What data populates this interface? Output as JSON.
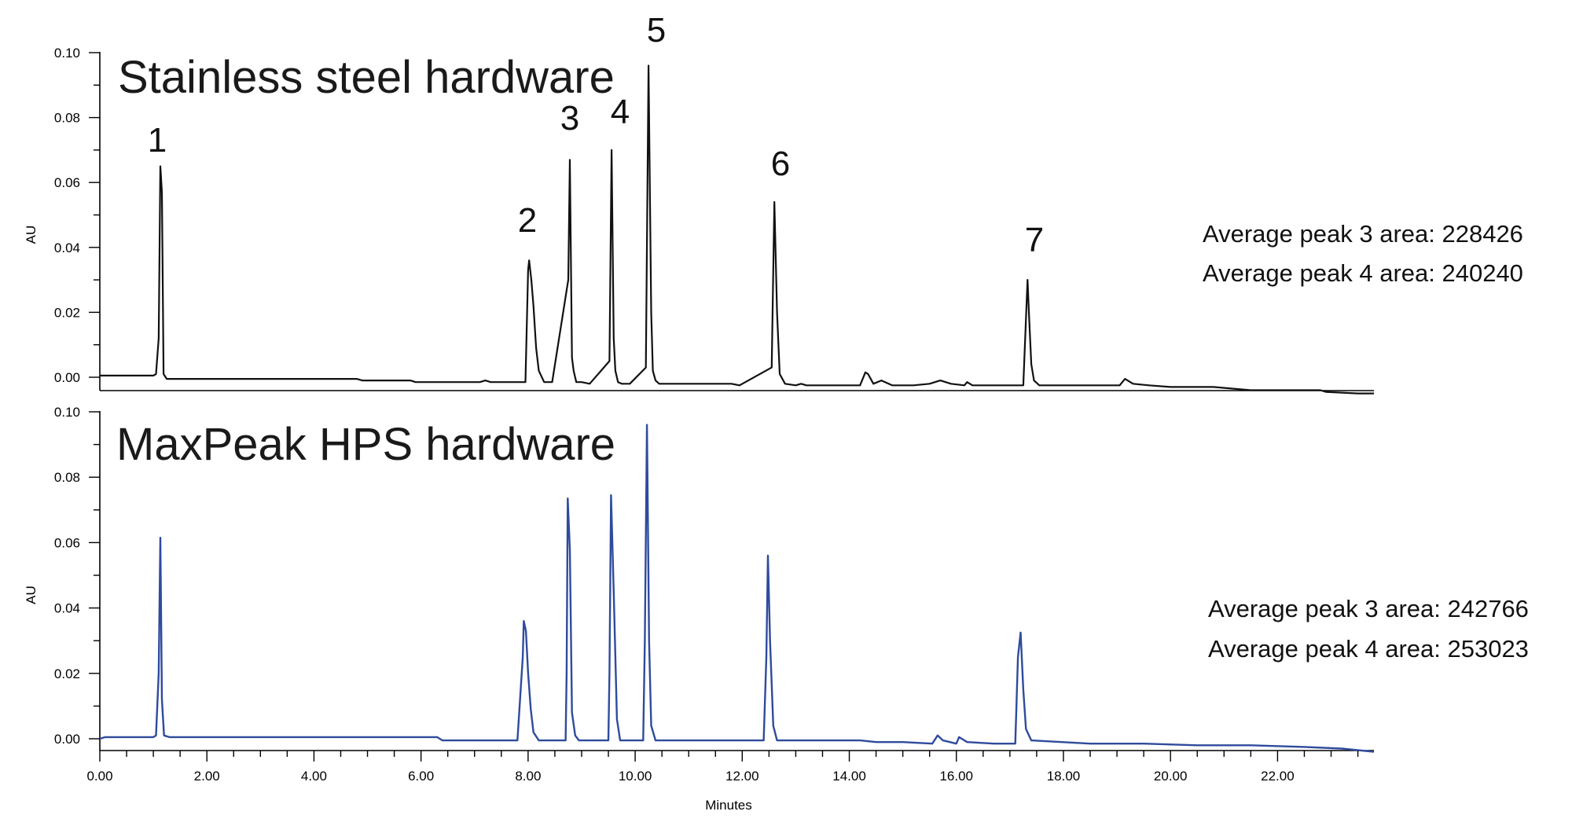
{
  "chart_data": [
    {
      "type": "line",
      "title": "Stainless steel hardware",
      "xlabel": "",
      "ylabel": "AU",
      "xlim": [
        0,
        23.8
      ],
      "ylim": [
        -0.005,
        0.1
      ],
      "yticks": [
        "0.00",
        "0.02",
        "0.04",
        "0.06",
        "0.08",
        "0.10"
      ],
      "xticks": [],
      "grid": false,
      "color": "#111111",
      "series": [
        {
          "x": [
            0,
            1.0,
            1.05,
            1.1,
            1.13,
            1.16,
            1.19,
            1.25,
            4.8,
            4.9,
            5.8,
            5.9,
            7.1,
            7.2,
            7.3,
            7.95,
            8.0,
            8.02,
            8.06,
            8.1,
            8.15,
            8.2,
            8.3,
            8.45,
            8.75,
            8.78,
            8.82,
            8.85,
            8.9,
            9.0,
            9.15,
            9.52,
            9.56,
            9.6,
            9.63,
            9.68,
            9.75,
            9.9,
            10.2,
            10.25,
            10.3,
            10.33,
            10.38,
            10.45,
            10.6,
            11.8,
            11.95,
            12.55,
            12.6,
            12.65,
            12.7,
            12.8,
            13.0,
            13.1,
            13.2,
            14.2,
            14.3,
            14.35,
            14.45,
            14.6,
            14.8,
            15.2,
            15.5,
            15.7,
            15.9,
            16.15,
            16.2,
            16.3,
            17.25,
            17.3,
            17.33,
            17.36,
            17.4,
            17.45,
            17.55,
            17.8,
            19.05,
            19.15,
            19.3,
            19.6,
            20.0,
            20.8,
            21.5,
            22.8,
            22.9,
            23.5,
            23.8
          ],
          "y": [
            0.0005,
            0.0005,
            0.001,
            0.012,
            0.065,
            0.057,
            0.001,
            -0.0005,
            -0.0005,
            -0.001,
            -0.001,
            -0.0015,
            -0.0015,
            -0.001,
            -0.0015,
            -0.0015,
            0.033,
            0.036,
            0.03,
            0.022,
            0.009,
            0.002,
            -0.0015,
            -0.0015,
            0.03,
            0.067,
            0.006,
            0.002,
            -0.0015,
            -0.0015,
            -0.002,
            0.005,
            0.07,
            0.012,
            0.002,
            -0.0015,
            -0.002,
            -0.002,
            0.003,
            0.096,
            0.02,
            0.002,
            -0.001,
            -0.002,
            -0.002,
            -0.002,
            -0.0025,
            0.003,
            0.054,
            0.02,
            0.001,
            -0.002,
            -0.0025,
            -0.002,
            -0.0025,
            -0.0025,
            0.0015,
            0.001,
            -0.002,
            -0.001,
            -0.0025,
            -0.0025,
            -0.002,
            -0.001,
            -0.002,
            -0.0025,
            -0.0015,
            -0.0025,
            -0.0025,
            0.018,
            0.03,
            0.018,
            0.004,
            -0.001,
            -0.0025,
            -0.0025,
            -0.0025,
            -0.0005,
            -0.002,
            -0.0025,
            -0.003,
            -0.003,
            -0.004,
            -0.004,
            -0.0045,
            -0.005,
            -0.005
          ]
        }
      ],
      "annotations": [
        "1",
        "2",
        "3",
        "4",
        "5",
        "6",
        "7"
      ],
      "notes": [
        "Average peak 3 area: 228426",
        "Average peak 4 area: 240240"
      ]
    },
    {
      "type": "line",
      "title": "MaxPeak HPS hardware",
      "xlabel": "Minutes",
      "ylabel": "AU",
      "xlim": [
        0,
        23.8
      ],
      "ylim": [
        -0.004,
        0.1
      ],
      "yticks": [
        "0.00",
        "0.02",
        "0.04",
        "0.06",
        "0.08",
        "0.10"
      ],
      "xticks": [
        "0.00",
        "2.00",
        "4.00",
        "6.00",
        "8.00",
        "10.00",
        "12.00",
        "14.00",
        "16.00",
        "18.00",
        "20.00",
        "22.00"
      ],
      "grid": false,
      "color": "#2f4b9c",
      "series": [
        {
          "x": [
            0,
            0.1,
            1.0,
            1.05,
            1.1,
            1.13,
            1.16,
            1.2,
            1.3,
            6.3,
            6.4,
            7.8,
            7.9,
            7.92,
            7.96,
            8.0,
            8.05,
            8.1,
            8.2,
            8.7,
            8.72,
            8.74,
            8.78,
            8.82,
            8.88,
            8.95,
            9.5,
            9.52,
            9.55,
            9.6,
            9.66,
            9.72,
            10.15,
            10.18,
            10.22,
            10.26,
            10.3,
            10.38,
            12.2,
            12.4,
            12.45,
            12.48,
            12.52,
            12.58,
            12.65,
            13.2,
            14.2,
            14.5,
            15.0,
            15.55,
            15.65,
            15.75,
            16.0,
            16.05,
            16.2,
            16.7,
            17.1,
            17.15,
            17.2,
            17.25,
            17.3,
            17.4,
            18.5,
            19.5,
            20.5,
            21.5,
            22.5,
            23.2,
            23.8
          ],
          "y": [
            0.0,
            0.0005,
            0.0005,
            0.001,
            0.02,
            0.0615,
            0.012,
            0.001,
            0.0005,
            0.0005,
            -0.0005,
            -0.0005,
            0.025,
            0.036,
            0.033,
            0.02,
            0.009,
            0.002,
            -0.0005,
            -0.0005,
            0.02,
            0.0735,
            0.058,
            0.008,
            0.001,
            -0.0005,
            -0.0005,
            0.02,
            0.0745,
            0.045,
            0.006,
            -0.0005,
            -0.0005,
            0.03,
            0.096,
            0.03,
            0.004,
            -0.0005,
            -0.0005,
            -0.0005,
            0.025,
            0.056,
            0.03,
            0.004,
            -0.0005,
            -0.0005,
            -0.0005,
            -0.001,
            -0.001,
            -0.0015,
            0.001,
            -0.0005,
            -0.0015,
            0.0005,
            -0.001,
            -0.0015,
            -0.0015,
            0.025,
            0.0325,
            0.015,
            0.003,
            -0.0005,
            -0.0015,
            -0.0015,
            -0.002,
            -0.002,
            -0.0025,
            -0.003,
            -0.004
          ]
        }
      ],
      "notes": [
        "Average peak 3 area: 242766",
        "Average peak 4 area: 253023"
      ]
    }
  ]
}
